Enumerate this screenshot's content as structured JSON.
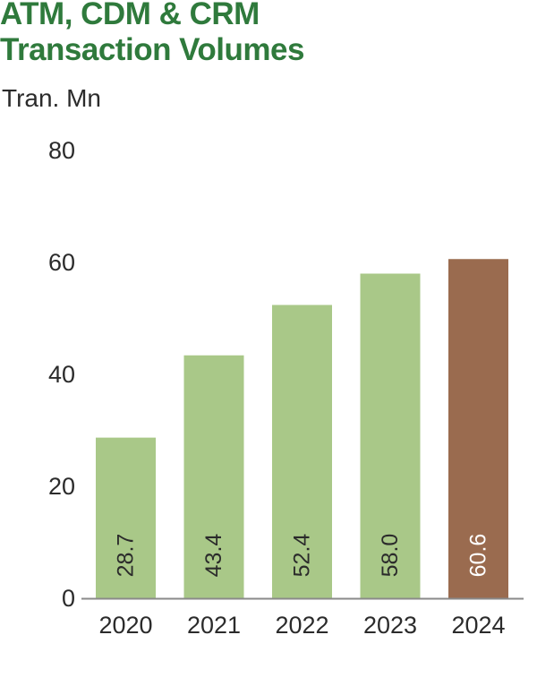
{
  "title_lines": [
    "ATM, CDM & CRM",
    "Transaction Volumes"
  ],
  "unit_label": "Tran. Mn",
  "colors": {
    "title": "#2f7a3c",
    "bar": "#a9c888",
    "highlight_bar": "#9a6b4f",
    "axis": "#8a8a8a",
    "text": "#2b2b2b",
    "highlight_label": "#ffffff"
  },
  "chart_data": {
    "type": "bar",
    "title": "ATM, CDM & CRM Transaction Volumes",
    "ylabel": "Tran. Mn",
    "xlabel": "",
    "categories": [
      "2020",
      "2021",
      "2022",
      "2023",
      "2024"
    ],
    "values": [
      28.7,
      43.4,
      52.4,
      58.0,
      60.6
    ],
    "value_labels": [
      "28.7",
      "43.4",
      "52.4",
      "58.0",
      "60.6"
    ],
    "highlight_index": 4,
    "ylim": [
      0,
      80
    ],
    "yticks": [
      0,
      20,
      40,
      60,
      80
    ],
    "grid": false,
    "legend": "none"
  }
}
